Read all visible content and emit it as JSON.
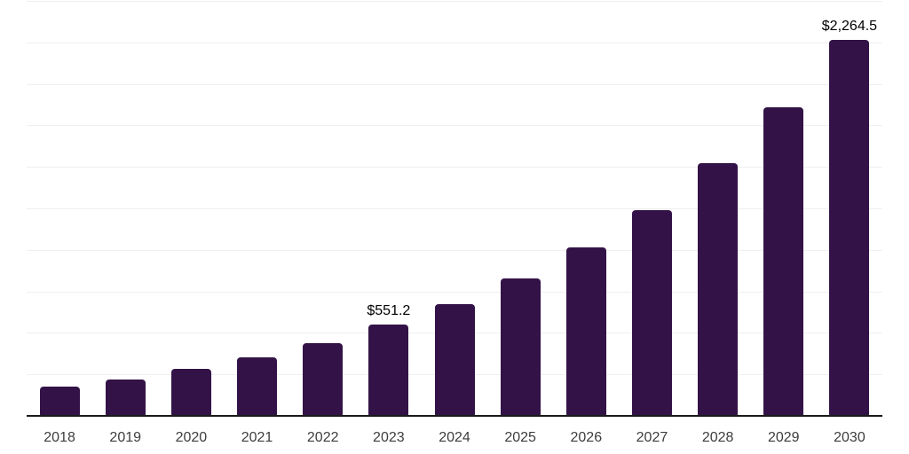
{
  "chart_data": {
    "type": "bar",
    "categories": [
      "2018",
      "2019",
      "2020",
      "2021",
      "2022",
      "2023",
      "2024",
      "2025",
      "2026",
      "2027",
      "2028",
      "2029",
      "2030"
    ],
    "values": [
      175,
      220,
      281,
      352,
      438,
      551.2,
      675,
      827,
      1015,
      1240,
      1525,
      1858,
      2264.5
    ],
    "data_labels": [
      "",
      "",
      "",
      "",
      "",
      "$551.2",
      "",
      "",
      "",
      "",
      "",
      "",
      "$2,264.5"
    ],
    "xlabel": "",
    "ylabel": "",
    "ylim": [
      0,
      2500
    ],
    "gridline_step": 250,
    "grid": "horizontal",
    "legend": "none",
    "colors": {
      "bar": "#331347",
      "gridline": "#efefef",
      "axis_line": "#1a1a1a",
      "tick_label": "#3d3d3d",
      "data_label": "#000000",
      "background": "#ffffff"
    }
  }
}
